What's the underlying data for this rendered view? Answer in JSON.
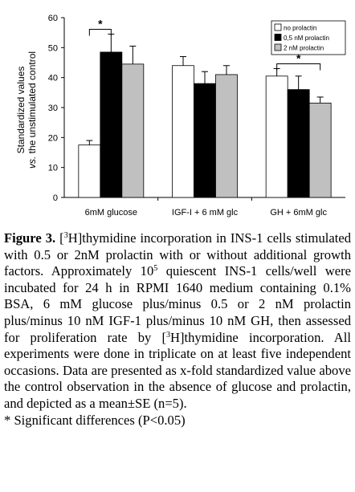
{
  "chart_data": {
    "type": "bar",
    "ylabel_line1": "Standardized values",
    "ylabel_line2_italic": "vs.",
    "ylabel_line2_rest": "the unstimulated control",
    "ylim": [
      0,
      60
    ],
    "yticks": [
      "0",
      "10",
      "20",
      "30",
      "40",
      "50",
      "60"
    ],
    "categories": [
      "6mM glucose",
      "IGF-I + 6 mM glc",
      "GH + 6mM glc"
    ],
    "series": [
      {
        "name": "no prolactin",
        "color": "#ffffff",
        "values": [
          17.5,
          44.0,
          40.5
        ],
        "errors": [
          1.5,
          3.0,
          2.5
        ]
      },
      {
        "name": "0,5 nM prolactin",
        "color": "#000000",
        "values": [
          48.5,
          38.0,
          36.0
        ],
        "errors": [
          6.0,
          4.0,
          4.5
        ]
      },
      {
        "name": "2 nM prolactin",
        "color": "#c0c0c0",
        "values": [
          44.5,
          41.0,
          31.5
        ],
        "errors": [
          6.0,
          3.0,
          2.0
        ]
      }
    ],
    "significance": [
      {
        "group": 0,
        "from_series": 0,
        "to_series": 1,
        "label": "*"
      },
      {
        "group": 2,
        "from_series": 0,
        "to_series": 2,
        "label": "*"
      }
    ],
    "legend_position": "top-right"
  },
  "caption": {
    "label": "Figure 3.",
    "t1": " [",
    "sup1": "3",
    "t2": "H]thymidine incorporation in INS-1 cells stimulated with 0.5 or 2nM prolactin with or without additional growth factors. Approximately 10",
    "sup2": "5",
    "t3": " quiescent INS-1 cells/well were incubated for 24 h in RPMI 1640 medium containing 0.1% BSA, 6 mM glucose plus/minus 0.5 or 2 nM prolactin plus/minus 10 nM IGF-1 plus/minus 10 nM GH, then assessed for proliferation rate by [",
    "sup3": "3",
    "t4": "H]thymidine incorporation. All experiments were done in triplicate on at least five independent occasions. Data are presented as x-fold standardized value above the control observation in the absence of glucose and prolactin, and depicted as a mean±SE (n=5).",
    "footnote": "* Significant differences (P<0.05)"
  }
}
